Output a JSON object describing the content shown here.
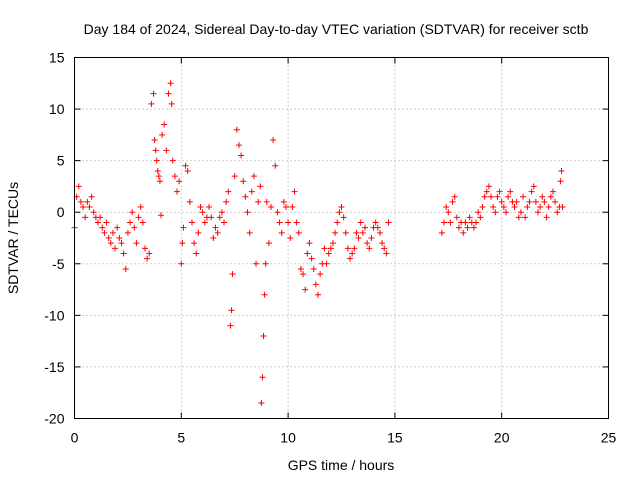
{
  "chart_data": {
    "type": "scatter",
    "title": "Day 184 of 2024, Sidereal Day-to-day VTEC variation (SDTVAR) for receiver sctb",
    "xlabel": "GPS time / hours",
    "ylabel": "SDTVAR / TECUs",
    "xlim": [
      0,
      25
    ],
    "ylim": [
      -20,
      15
    ],
    "xticks": [
      0,
      5,
      10,
      15,
      20,
      25
    ],
    "yticks": [
      -20,
      -15,
      -10,
      -5,
      0,
      5,
      10,
      15
    ],
    "xtick_labels": [
      "0",
      "5",
      "10",
      "15",
      "20",
      "25"
    ],
    "ytick_labels": [
      "-20",
      "-15",
      "-10",
      "-5",
      "0",
      "5",
      "10",
      "15"
    ],
    "grid": true,
    "marker": "+",
    "series": [
      {
        "name": "sctb",
        "color": "#ff0000",
        "points": [
          [
            0.0,
            -1.5
          ],
          [
            0.1,
            1.5
          ],
          [
            0.2,
            2.5
          ],
          [
            0.3,
            1.0
          ],
          [
            0.4,
            0.5
          ],
          [
            0.5,
            -0.5
          ],
          [
            0.6,
            1.0
          ],
          [
            0.7,
            0.5
          ],
          [
            0.8,
            1.5
          ],
          [
            0.9,
            0.0
          ],
          [
            1.0,
            -0.5
          ],
          [
            1.1,
            -1.0
          ],
          [
            1.2,
            -0.5
          ],
          [
            1.3,
            -1.5
          ],
          [
            1.4,
            -2.0
          ],
          [
            1.5,
            -1.0
          ],
          [
            1.6,
            -2.5
          ],
          [
            1.7,
            -3.0
          ],
          [
            1.8,
            -2.0
          ],
          [
            1.9,
            -3.5
          ],
          [
            2.0,
            -1.5
          ],
          [
            2.1,
            -2.5
          ],
          [
            2.2,
            -3.0
          ],
          [
            2.3,
            -4.0
          ],
          [
            2.4,
            -5.5
          ],
          [
            2.5,
            -2.0
          ],
          [
            2.6,
            -1.0
          ],
          [
            2.7,
            0.0
          ],
          [
            2.8,
            -1.5
          ],
          [
            2.9,
            -3.0
          ],
          [
            3.0,
            -0.5
          ],
          [
            3.1,
            0.5
          ],
          [
            3.2,
            -1.0
          ],
          [
            3.3,
            -3.5
          ],
          [
            3.4,
            -4.5
          ],
          [
            3.5,
            -4.0
          ],
          [
            3.6,
            10.5
          ],
          [
            3.7,
            11.5
          ],
          [
            3.75,
            7.0
          ],
          [
            3.8,
            6.0
          ],
          [
            3.85,
            5.0
          ],
          [
            3.9,
            4.0
          ],
          [
            3.95,
            3.5
          ],
          [
            4.0,
            3.0
          ],
          [
            4.05,
            -0.3
          ],
          [
            4.1,
            7.5
          ],
          [
            4.2,
            8.5
          ],
          [
            4.3,
            6.0
          ],
          [
            4.4,
            11.5
          ],
          [
            4.5,
            12.5
          ],
          [
            4.55,
            10.5
          ],
          [
            4.6,
            5.0
          ],
          [
            4.7,
            3.5
          ],
          [
            4.8,
            2.0
          ],
          [
            4.9,
            3.0
          ],
          [
            5.0,
            -5.0
          ],
          [
            5.05,
            -3.0
          ],
          [
            5.1,
            -1.5
          ],
          [
            5.2,
            4.5
          ],
          [
            5.3,
            4.0
          ],
          [
            5.4,
            1.0
          ],
          [
            5.5,
            -1.0
          ],
          [
            5.6,
            -3.0
          ],
          [
            5.7,
            -4.0
          ],
          [
            5.8,
            -2.0
          ],
          [
            5.9,
            0.5
          ],
          [
            6.0,
            0.0
          ],
          [
            6.1,
            -1.0
          ],
          [
            6.2,
            -0.5
          ],
          [
            6.3,
            0.5
          ],
          [
            6.4,
            -0.5
          ],
          [
            6.5,
            -2.5
          ],
          [
            6.6,
            -1.5
          ],
          [
            6.7,
            -2.0
          ],
          [
            6.8,
            -0.5
          ],
          [
            6.9,
            0.0
          ],
          [
            7.0,
            -1.0
          ],
          [
            7.1,
            1.0
          ],
          [
            7.2,
            2.0
          ],
          [
            7.3,
            -11.0
          ],
          [
            7.35,
            -9.5
          ],
          [
            7.4,
            -6.0
          ],
          [
            7.5,
            3.5
          ],
          [
            7.6,
            8.0
          ],
          [
            7.7,
            6.5
          ],
          [
            7.8,
            5.5
          ],
          [
            7.9,
            3.0
          ],
          [
            8.0,
            1.5
          ],
          [
            8.1,
            0.0
          ],
          [
            8.2,
            -2.0
          ],
          [
            8.3,
            2.0
          ],
          [
            8.4,
            3.5
          ],
          [
            8.5,
            -5.0
          ],
          [
            8.6,
            1.0
          ],
          [
            8.7,
            2.5
          ],
          [
            8.75,
            -18.5
          ],
          [
            8.8,
            -16.0
          ],
          [
            8.85,
            -12.0
          ],
          [
            8.9,
            -8.0
          ],
          [
            8.95,
            -5.0
          ],
          [
            9.0,
            1.0
          ],
          [
            9.1,
            -3.0
          ],
          [
            9.2,
            0.5
          ],
          [
            9.3,
            7.0
          ],
          [
            9.4,
            4.5
          ],
          [
            9.5,
            0.0
          ],
          [
            9.6,
            -1.0
          ],
          [
            9.7,
            -2.0
          ],
          [
            9.8,
            1.0
          ],
          [
            9.9,
            0.5
          ],
          [
            10.0,
            -1.0
          ],
          [
            10.1,
            -2.5
          ],
          [
            10.2,
            0.5
          ],
          [
            10.3,
            2.0
          ],
          [
            10.4,
            -1.0
          ],
          [
            10.5,
            -2.0
          ],
          [
            10.6,
            -5.5
          ],
          [
            10.7,
            -6.0
          ],
          [
            10.8,
            -7.5
          ],
          [
            10.9,
            -4.0
          ],
          [
            11.0,
            -3.0
          ],
          [
            11.1,
            -4.5
          ],
          [
            11.2,
            -5.5
          ],
          [
            11.3,
            -7.0
          ],
          [
            11.4,
            -8.0
          ],
          [
            11.5,
            -6.0
          ],
          [
            11.6,
            -5.0
          ],
          [
            11.7,
            -3.5
          ],
          [
            11.8,
            -5.0
          ],
          [
            11.9,
            -4.0
          ],
          [
            12.0,
            -3.5
          ],
          [
            12.1,
            -3.0
          ],
          [
            12.2,
            -2.0
          ],
          [
            12.3,
            -1.0
          ],
          [
            12.4,
            0.0
          ],
          [
            12.5,
            0.5
          ],
          [
            12.6,
            -0.5
          ],
          [
            12.7,
            -2.0
          ],
          [
            12.8,
            -3.5
          ],
          [
            12.9,
            -4.5
          ],
          [
            13.0,
            -4.0
          ],
          [
            13.1,
            -3.5
          ],
          [
            13.2,
            -2.0
          ],
          [
            13.3,
            -2.5
          ],
          [
            13.4,
            -1.0
          ],
          [
            13.5,
            -2.0
          ],
          [
            13.6,
            -1.5
          ],
          [
            13.7,
            -3.0
          ],
          [
            13.8,
            -3.5
          ],
          [
            13.9,
            -2.5
          ],
          [
            14.0,
            -1.5
          ],
          [
            14.1,
            -1.0
          ],
          [
            14.2,
            -1.5
          ],
          [
            14.3,
            -2.0
          ],
          [
            14.4,
            -3.0
          ],
          [
            14.5,
            -3.5
          ],
          [
            14.6,
            -4.0
          ],
          [
            14.7,
            -1.0
          ],
          [
            17.2,
            -2.0
          ],
          [
            17.3,
            -1.0
          ],
          [
            17.4,
            0.5
          ],
          [
            17.5,
            0.0
          ],
          [
            17.6,
            -1.0
          ],
          [
            17.7,
            1.0
          ],
          [
            17.8,
            1.5
          ],
          [
            17.9,
            -0.5
          ],
          [
            18.0,
            -1.5
          ],
          [
            18.1,
            -1.0
          ],
          [
            18.2,
            -2.0
          ],
          [
            18.3,
            -1.0
          ],
          [
            18.4,
            -1.5
          ],
          [
            18.5,
            -0.5
          ],
          [
            18.6,
            -1.0
          ],
          [
            18.7,
            -1.5
          ],
          [
            18.8,
            -1.0
          ],
          [
            18.9,
            0.0
          ],
          [
            19.0,
            -0.5
          ],
          [
            19.1,
            0.5
          ],
          [
            19.2,
            1.5
          ],
          [
            19.3,
            2.0
          ],
          [
            19.4,
            2.5
          ],
          [
            19.5,
            1.5
          ],
          [
            19.6,
            0.5
          ],
          [
            19.7,
            0.0
          ],
          [
            19.8,
            1.5
          ],
          [
            19.9,
            2.0
          ],
          [
            20.0,
            1.0
          ],
          [
            20.1,
            0.5
          ],
          [
            20.2,
            0.0
          ],
          [
            20.3,
            1.5
          ],
          [
            20.4,
            2.0
          ],
          [
            20.5,
            1.0
          ],
          [
            20.6,
            0.5
          ],
          [
            20.7,
            1.0
          ],
          [
            20.8,
            -0.5
          ],
          [
            20.9,
            0.0
          ],
          [
            21.0,
            1.5
          ],
          [
            21.1,
            -0.5
          ],
          [
            21.2,
            0.5
          ],
          [
            21.3,
            1.0
          ],
          [
            21.4,
            2.0
          ],
          [
            21.5,
            2.5
          ],
          [
            21.6,
            1.0
          ],
          [
            21.7,
            0.0
          ],
          [
            21.8,
            0.5
          ],
          [
            21.9,
            1.5
          ],
          [
            22.0,
            1.0
          ],
          [
            22.1,
            -0.5
          ],
          [
            22.2,
            0.5
          ],
          [
            22.3,
            1.5
          ],
          [
            22.4,
            2.0
          ],
          [
            22.5,
            1.0
          ],
          [
            22.6,
            0.0
          ],
          [
            22.7,
            0.5
          ],
          [
            22.75,
            3.0
          ],
          [
            22.8,
            4.0
          ],
          [
            22.85,
            0.5
          ]
        ]
      }
    ]
  }
}
